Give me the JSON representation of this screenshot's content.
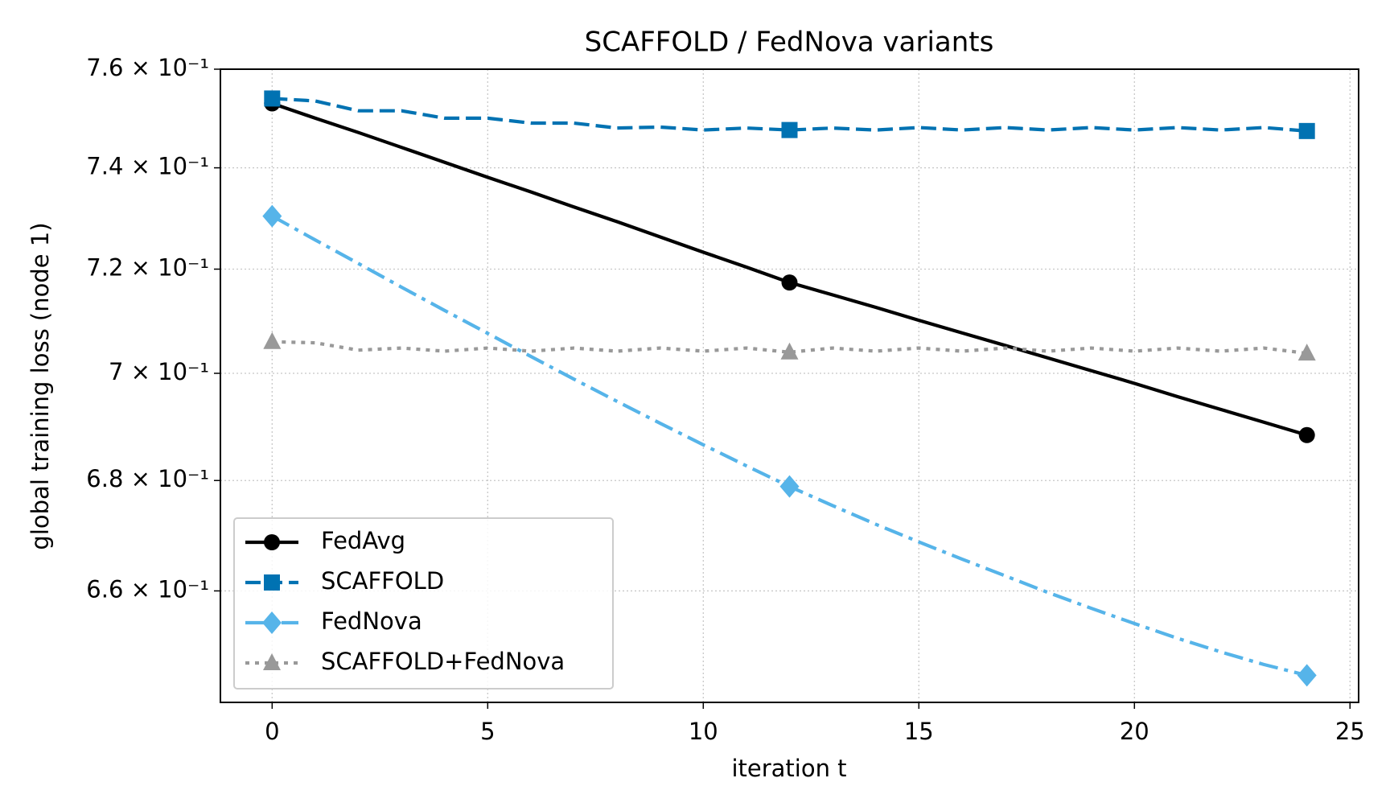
{
  "chart_data": {
    "type": "line",
    "title": "SCAFFOLD / FedNova variants",
    "xlabel": "iteration t",
    "ylabel": "global training loss (node 1)",
    "x": [
      0,
      1,
      2,
      3,
      4,
      5,
      6,
      7,
      8,
      9,
      10,
      11,
      12,
      13,
      14,
      15,
      16,
      17,
      18,
      19,
      20,
      21,
      22,
      23,
      24
    ],
    "xlim": [
      -1.2,
      25.2
    ],
    "xticks": [
      0,
      5,
      10,
      15,
      20,
      25
    ],
    "ylim": [
      0.6404,
      0.76
    ],
    "yscale": "log",
    "yticks": [
      {
        "value": 0.66,
        "label": "6.6 × 10⁻¹"
      },
      {
        "value": 0.68,
        "label": "6.8 × 10⁻¹"
      },
      {
        "value": 0.7,
        "label": "7 × 10⁻¹"
      },
      {
        "value": 0.72,
        "label": "7.2 × 10⁻¹"
      },
      {
        "value": 0.74,
        "label": "7.4 × 10⁻¹"
      },
      {
        "value": 0.76,
        "label": "7.6 × 10⁻¹"
      }
    ],
    "grid": true,
    "legend": "lower left",
    "markevery": 12,
    "series": [
      {
        "name": "FedAvg",
        "color": "#000000",
        "linestyle": "solid",
        "marker": "circle",
        "values": [
          0.753,
          0.75,
          0.7471,
          0.7441,
          0.7411,
          0.7381,
          0.7352,
          0.7322,
          0.7293,
          0.7263,
          0.7233,
          0.7204,
          0.7174,
          0.715,
          0.7126,
          0.7101,
          0.7077,
          0.7053,
          0.7029,
          0.7005,
          0.6981,
          0.6956,
          0.6932,
          0.6908,
          0.6884
        ]
      },
      {
        "name": "SCAFFOLD",
        "color": "#0072b2",
        "linestyle": "dashed",
        "marker": "square",
        "values": [
          0.754,
          0.7535,
          0.7515,
          0.7515,
          0.75,
          0.75,
          0.749,
          0.749,
          0.748,
          0.7482,
          0.7476,
          0.748,
          0.7476,
          0.748,
          0.7476,
          0.7481,
          0.7476,
          0.7481,
          0.7476,
          0.7481,
          0.7476,
          0.7481,
          0.7476,
          0.7481,
          0.7474
        ]
      },
      {
        "name": "FedNova",
        "color": "#56b4e9",
        "linestyle": "dashdot",
        "marker": "diamond",
        "values": [
          0.7304,
          0.7257,
          0.7211,
          0.7165,
          0.712,
          0.7076,
          0.7032,
          0.6989,
          0.6947,
          0.6906,
          0.6866,
          0.6827,
          0.6789,
          0.6754,
          0.672,
          0.6688,
          0.6657,
          0.6627,
          0.6597,
          0.6569,
          0.6542,
          0.6516,
          0.6492,
          0.647,
          0.6451
        ]
      },
      {
        "name": "SCAFFOLD+FedNova",
        "color": "#999999",
        "linestyle": "dotted",
        "marker": "triangle",
        "values": [
          0.706,
          0.7058,
          0.7044,
          0.7048,
          0.7042,
          0.7048,
          0.7042,
          0.7048,
          0.7042,
          0.7048,
          0.7042,
          0.7048,
          0.704,
          0.7048,
          0.7042,
          0.7048,
          0.7042,
          0.7048,
          0.7042,
          0.7048,
          0.7042,
          0.7048,
          0.7042,
          0.7048,
          0.7038
        ]
      }
    ]
  }
}
